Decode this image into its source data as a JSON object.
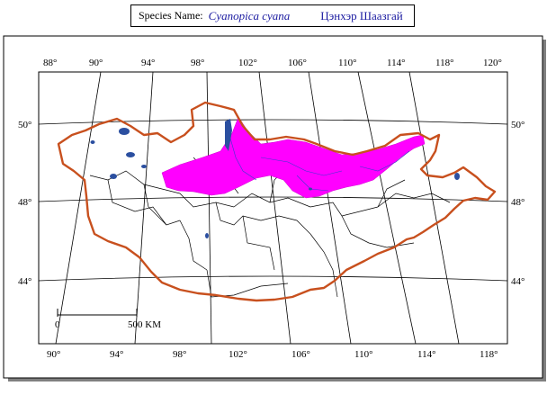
{
  "header": {
    "species_label": "Species Name:",
    "scientific_name": "Cyanopica cyana",
    "mongolian_name": "Цэнхэр Шаазгай"
  },
  "map": {
    "top_longitudes": [
      "88°",
      "90°",
      "94°",
      "98°",
      "102°",
      "106°",
      "110°",
      "114°",
      "118°",
      "120°"
    ],
    "bottom_longitudes": [
      "90°",
      "94°",
      "98°",
      "102°",
      "106°",
      "110°",
      "114°",
      "118°"
    ],
    "left_latitudes": [
      "50°",
      "48°",
      "44°"
    ],
    "right_latitudes": [
      "50°",
      "48°",
      "44°"
    ],
    "scale_start": "0",
    "scale_end": "500 KM",
    "colors": {
      "border": "#c8501e",
      "range": "#ff00ff",
      "water": "#2b4fa0",
      "graticule": "#000000"
    }
  }
}
